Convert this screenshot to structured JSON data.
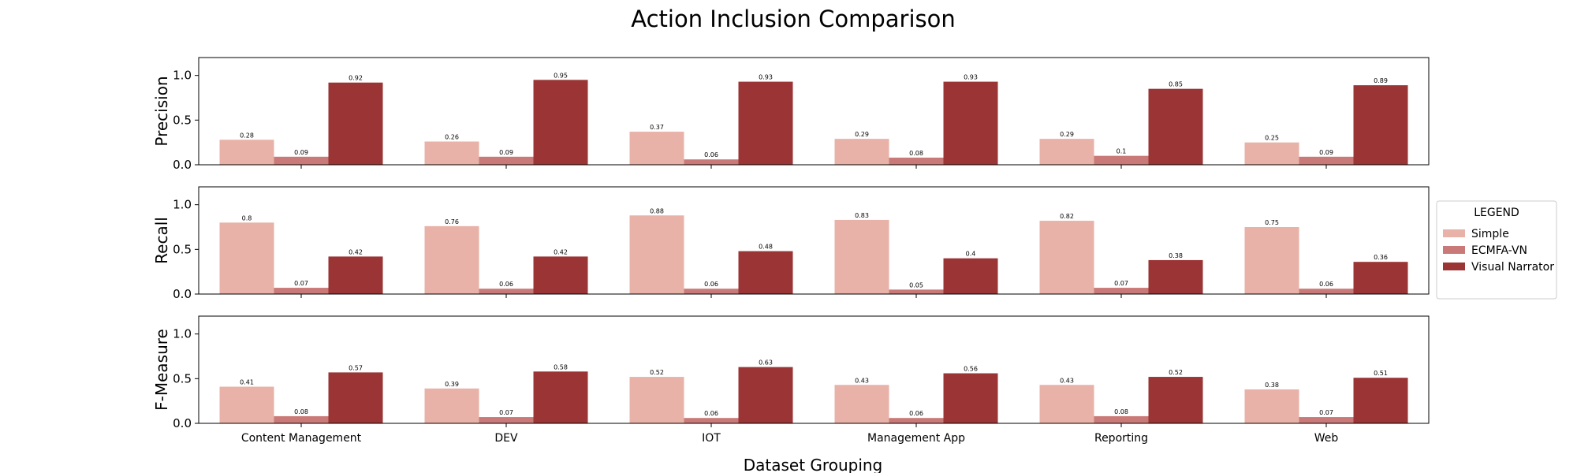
{
  "chart_data": {
    "type": "bar",
    "title": "Action Inclusion Comparison",
    "xlabel": "Dataset Grouping",
    "categories": [
      "Content Management",
      "DEV",
      "IOT",
      "Management App",
      "Reporting",
      "Web"
    ],
    "ylim": [
      0,
      1.2
    ],
    "yticks": [
      "0.0",
      "0.5",
      "1.0"
    ],
    "legend": {
      "title": "LEGEND",
      "placement": "right",
      "entries": [
        "Simple",
        "ECMFA-VN",
        "Visual Narrator"
      ]
    },
    "colors": [
      "#e8b2a8",
      "#c97a78",
      "#9a3435"
    ],
    "panels": [
      {
        "ylabel": "Precision",
        "series": [
          {
            "name": "Simple",
            "values": [
              0.28,
              0.26,
              0.37,
              0.29,
              0.29,
              0.25
            ]
          },
          {
            "name": "ECMFA-VN",
            "values": [
              0.09,
              0.09,
              0.06,
              0.08,
              0.1,
              0.09
            ]
          },
          {
            "name": "Visual Narrator",
            "values": [
              0.92,
              0.95,
              0.93,
              0.93,
              0.85,
              0.89
            ]
          }
        ]
      },
      {
        "ylabel": "Recall",
        "series": [
          {
            "name": "Simple",
            "values": [
              0.8,
              0.76,
              0.88,
              0.83,
              0.82,
              0.75
            ]
          },
          {
            "name": "ECMFA-VN",
            "values": [
              0.07,
              0.06,
              0.06,
              0.05,
              0.07,
              0.06
            ]
          },
          {
            "name": "Visual Narrator",
            "values": [
              0.42,
              0.42,
              0.48,
              0.4,
              0.38,
              0.36
            ]
          }
        ]
      },
      {
        "ylabel": "F-Measure",
        "series": [
          {
            "name": "Simple",
            "values": [
              0.41,
              0.39,
              0.52,
              0.43,
              0.43,
              0.38
            ]
          },
          {
            "name": "ECMFA-VN",
            "values": [
              0.08,
              0.07,
              0.06,
              0.06,
              0.08,
              0.07
            ]
          },
          {
            "name": "Visual Narrator",
            "values": [
              0.57,
              0.58,
              0.63,
              0.56,
              0.52,
              0.51
            ]
          }
        ]
      }
    ]
  }
}
